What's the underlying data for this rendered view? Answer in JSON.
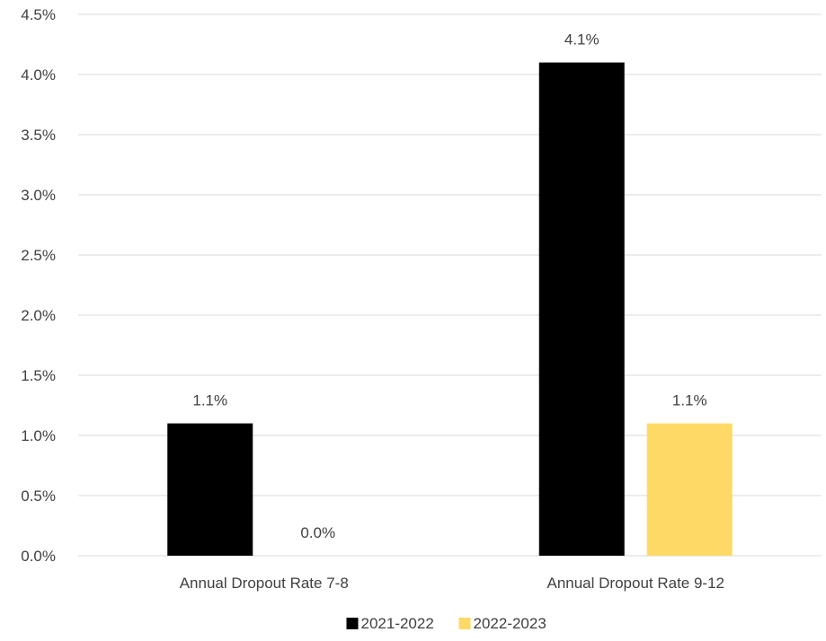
{
  "chart_data": {
    "type": "bar",
    "categories": [
      "Annual Dropout Rate 7-8",
      "Annual Dropout Rate 9-12"
    ],
    "series": [
      {
        "name": "2021-2022",
        "values": [
          1.1,
          4.1
        ],
        "color": "#000000"
      },
      {
        "name": "2022-2023",
        "values": [
          0.0,
          1.1
        ],
        "color": "#FFD966"
      }
    ],
    "data_labels": [
      [
        "1.1%",
        "4.1%"
      ],
      [
        "0.0%",
        "1.1%"
      ]
    ],
    "y_ticks": [
      "0.0%",
      "0.5%",
      "1.0%",
      "1.5%",
      "2.0%",
      "2.5%",
      "3.0%",
      "3.5%",
      "4.0%",
      "4.5%"
    ],
    "ylim": [
      0,
      4.5
    ],
    "y_step": 0.5,
    "title": "",
    "xlabel": "",
    "ylabel": "",
    "grid": true,
    "legend_position": "bottom"
  }
}
